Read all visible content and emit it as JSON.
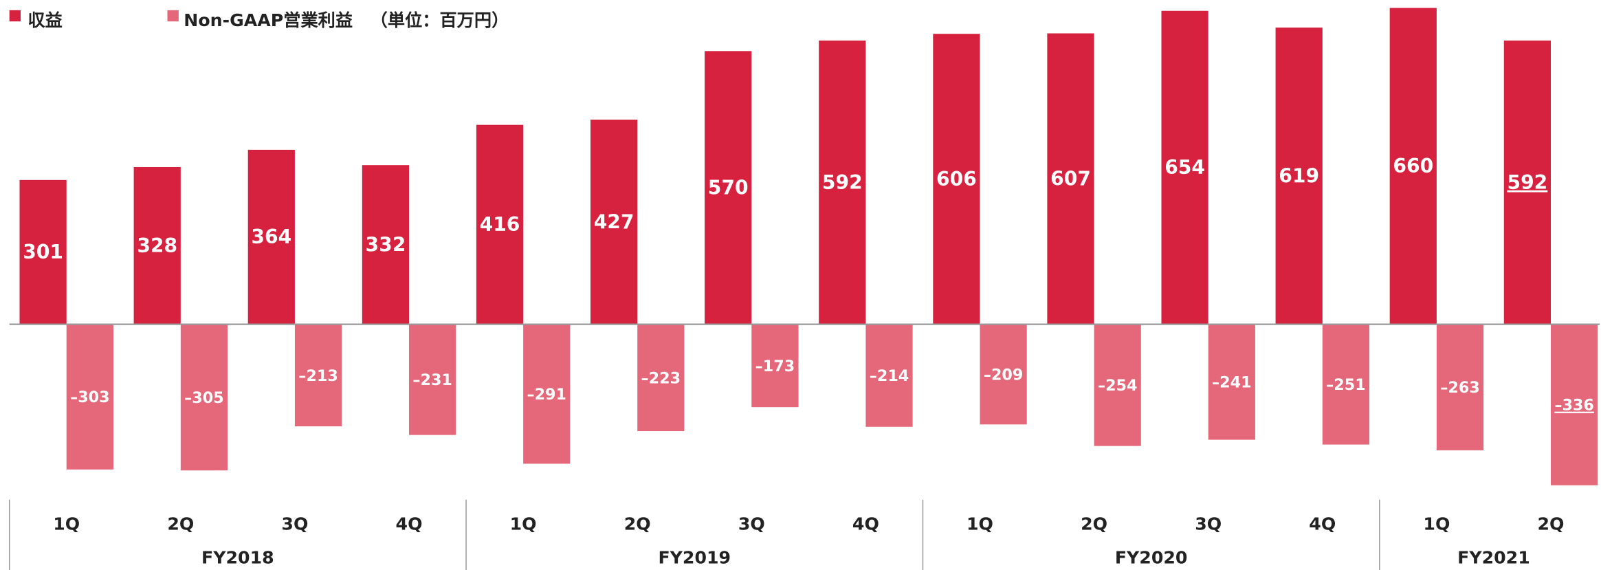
{
  "chart_data": {
    "type": "bar",
    "groups": [
      {
        "name": "FY2018",
        "categories": [
          "1Q",
          "2Q",
          "3Q",
          "4Q"
        ]
      },
      {
        "name": "FY2019",
        "categories": [
          "1Q",
          "2Q",
          "3Q",
          "4Q"
        ]
      },
      {
        "name": "FY2020",
        "categories": [
          "1Q",
          "2Q",
          "3Q",
          "4Q"
        ]
      },
      {
        "name": "FY2021",
        "categories": [
          "1Q",
          "2Q"
        ]
      }
    ],
    "unit_note": "（単位：百万円）",
    "series": [
      {
        "name": "収益",
        "color": "#d6213f",
        "values": [
          301,
          328,
          364,
          332,
          416,
          427,
          570,
          592,
          606,
          607,
          654,
          619,
          660,
          592
        ]
      },
      {
        "name": "Non-GAAP営業利益",
        "color": "#e4677a",
        "values": [
          -303,
          -305,
          -213,
          -231,
          -291,
          -223,
          -173,
          -214,
          -209,
          -254,
          -241,
          -251,
          -263,
          -336
        ],
        "value_labels": [
          "–303",
          "–305",
          "–213",
          "–231",
          "–291",
          "–223",
          "–173",
          "–214",
          "–209",
          "–254",
          "–241",
          "–251",
          "–263",
          "–336"
        ]
      }
    ]
  }
}
